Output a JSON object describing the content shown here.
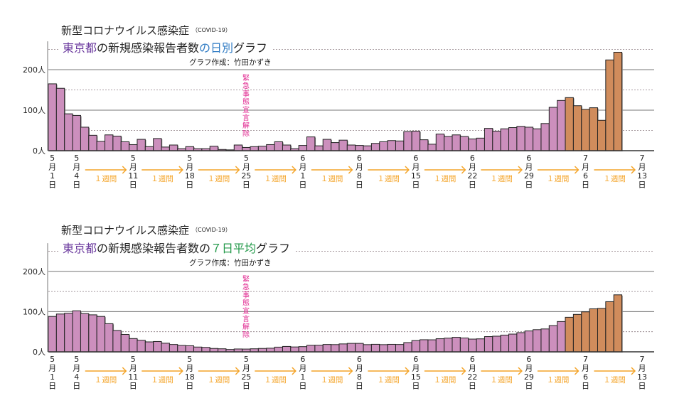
{
  "chart_data": [
    {
      "type": "bar",
      "title": "新型コロナウイルス感染症",
      "title_note": "（COVID-19）",
      "subtitle_parts": [
        {
          "text": "東京都",
          "color": "#6b3a9e"
        },
        {
          "text": "の新規感染報告者数",
          "color": "#222222"
        },
        {
          "text": "の日別",
          "color": "#2f7bc4"
        },
        {
          "text": "グラフ",
          "color": "#222222"
        }
      ],
      "credit": "グラフ作成：竹田かずき",
      "annotation": "緊急事態宣言解除",
      "ylim": [
        0,
        250
      ],
      "yticks": [
        {
          "v": 0,
          "label": "0人"
        },
        {
          "v": 100,
          "label": "100人"
        },
        {
          "v": 200,
          "label": "200人"
        }
      ],
      "values": [
        165,
        154,
        91,
        87,
        58,
        38,
        23,
        39,
        36,
        22,
        15,
        28,
        10,
        30,
        9,
        14,
        5,
        10,
        5,
        5,
        11,
        3,
        2,
        14,
        8,
        10,
        11,
        15,
        22,
        14,
        5,
        13,
        34,
        12,
        28,
        20,
        26,
        14,
        13,
        12,
        18,
        22,
        25,
        24,
        47,
        48,
        27,
        16,
        41,
        35,
        39,
        35,
        29,
        31,
        55,
        48,
        54,
        57,
        60,
        58,
        54,
        67,
        107,
        124,
        131,
        111,
        102,
        106,
        75,
        224,
        243
      ],
      "highlight_from_index": 64
    },
    {
      "type": "bar",
      "title": "新型コロナウイルス感染症",
      "title_note": "（COVID-19）",
      "subtitle_parts": [
        {
          "text": "東京都",
          "color": "#6b3a9e"
        },
        {
          "text": "の新規感染報告者数の",
          "color": "#222222"
        },
        {
          "text": "７日平均",
          "color": "#23994a"
        },
        {
          "text": "グラフ",
          "color": "#222222"
        }
      ],
      "credit": "グラフ作成：竹田かずき",
      "annotation": "緊急事態宣言解除",
      "ylim": [
        0,
        250
      ],
      "yticks": [
        {
          "v": 0,
          "label": "0人"
        },
        {
          "v": 100,
          "label": "100人"
        },
        {
          "v": 200,
          "label": "200人"
        }
      ],
      "values": [
        88,
        94,
        96,
        102,
        95,
        92,
        88,
        70,
        53.1,
        43.3,
        33,
        28.7,
        24.7,
        25.7,
        21.4,
        18.3,
        15.9,
        15.1,
        11.9,
        11.1,
        8.4,
        7.6,
        5.9,
        7.1,
        6.9,
        7.6,
        8.4,
        9,
        11.7,
        13.4,
        12.1,
        12.9,
        16.3,
        16.4,
        18.3,
        18,
        19.7,
        21,
        21,
        17.9,
        18.7,
        17.9,
        18.6,
        18.3,
        23,
        28,
        30.1,
        29.9,
        32.6,
        34,
        36.1,
        34.4,
        31.7,
        32.3,
        37.9,
        38.9,
        41.6,
        44.1,
        47.7,
        51.9,
        55.1,
        56.9,
        65.3,
        75.3,
        85.9,
        93.1,
        99.4,
        106.9,
        108,
        124.7,
        141.7
      ],
      "highlight_from_index": 64
    }
  ],
  "x_labels": [
    {
      "index": 0,
      "month": "5",
      "day": "1"
    },
    {
      "index": 3,
      "month": "5",
      "day": "4"
    },
    {
      "index": 10,
      "month": "5",
      "day": "11"
    },
    {
      "index": 17,
      "month": "5",
      "day": "18"
    },
    {
      "index": 24,
      "month": "5",
      "day": "25"
    },
    {
      "index": 31,
      "month": "6",
      "day": "1"
    },
    {
      "index": 38,
      "month": "6",
      "day": "8"
    },
    {
      "index": 45,
      "month": "6",
      "day": "15"
    },
    {
      "index": 52,
      "month": "6",
      "day": "22"
    },
    {
      "index": 59,
      "month": "6",
      "day": "29"
    },
    {
      "index": 66,
      "month": "7",
      "day": "6"
    },
    {
      "index": 73,
      "month": "7",
      "day": "13"
    }
  ],
  "month_char": "月",
  "day_char": "日",
  "week_label": "１週間",
  "colors": {
    "bar": "#cc8fbd",
    "highlight": "#d08c5c",
    "arrow": "#f4a428",
    "annotation": "#e0268f"
  }
}
